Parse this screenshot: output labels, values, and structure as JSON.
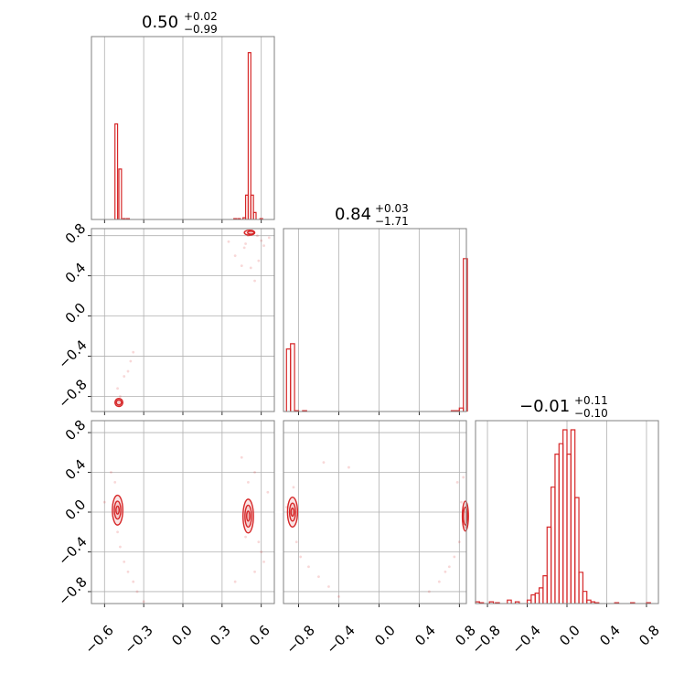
{
  "colors": {
    "series": "#d62728",
    "grid": "#b0b0b0",
    "frame": "#808080",
    "background": "#ffffff"
  },
  "panels": {
    "p0": {
      "title": {
        "value": "0.50",
        "plus": "+0.02",
        "minus": "−0.99"
      }
    },
    "p1": {
      "title": {
        "value": "0.84",
        "plus": "+0.03",
        "minus": "−1.71"
      }
    },
    "p2": {
      "title": {
        "value": "−0.01",
        "plus": "+0.11",
        "minus": "−0.10"
      }
    }
  },
  "ticks": {
    "param0_x": [
      "−0.6",
      "−0.3",
      "0.0",
      "0.3",
      "0.6"
    ],
    "param1_x": [
      "−0.8",
      "−0.4",
      "0.0",
      "0.4",
      "0.8"
    ],
    "param2_x": [
      "−0.8",
      "−0.4",
      "0.0",
      "0.4",
      "0.8"
    ],
    "param1_y": [
      "0.8",
      "0.4",
      "0.0",
      "−0.4",
      "−0.8"
    ],
    "param2_y": [
      "0.8",
      "0.4",
      "0.0",
      "−0.4",
      "−0.8"
    ]
  },
  "chart_data": [
    {
      "type": "histogram",
      "panel": "p0",
      "xlim": [
        -0.7,
        0.7
      ],
      "bins": [
        {
          "x": -0.51,
          "y": 0.55
        },
        {
          "x": -0.48,
          "y": 0.29
        },
        {
          "x": -0.45,
          "y": 0.005
        },
        {
          "x": -0.42,
          "y": 0.005
        },
        {
          "x": 0.4,
          "y": 0.005
        },
        {
          "x": 0.43,
          "y": 0.005
        },
        {
          "x": 0.47,
          "y": 0.01
        },
        {
          "x": 0.49,
          "y": 0.14
        },
        {
          "x": 0.51,
          "y": 0.96
        },
        {
          "x": 0.53,
          "y": 0.14
        },
        {
          "x": 0.55,
          "y": 0.04
        },
        {
          "x": 0.6,
          "y": 0.005
        }
      ]
    },
    {
      "type": "histogram",
      "panel": "p1",
      "xlim": [
        -0.95,
        0.87
      ],
      "bins": [
        {
          "x": -0.9,
          "y": 0.36
        },
        {
          "x": -0.86,
          "y": 0.39
        },
        {
          "x": -0.82,
          "y": 0.005
        },
        {
          "x": -0.74,
          "y": 0.005
        },
        {
          "x": 0.74,
          "y": 0.005
        },
        {
          "x": 0.78,
          "y": 0.005
        },
        {
          "x": 0.82,
          "y": 0.02
        },
        {
          "x": 0.86,
          "y": 0.88
        }
      ]
    },
    {
      "type": "histogram",
      "panel": "p2",
      "xlim": [
        -0.92,
        0.92
      ],
      "bins": [
        {
          "x": -0.9,
          "y": 0.01
        },
        {
          "x": -0.86,
          "y": 0.005
        },
        {
          "x": -0.76,
          "y": 0.01
        },
        {
          "x": -0.7,
          "y": 0.005
        },
        {
          "x": -0.58,
          "y": 0.02
        },
        {
          "x": -0.5,
          "y": 0.01
        },
        {
          "x": -0.38,
          "y": 0.02
        },
        {
          "x": -0.34,
          "y": 0.05
        },
        {
          "x": -0.3,
          "y": 0.06
        },
        {
          "x": -0.26,
          "y": 0.09
        },
        {
          "x": -0.22,
          "y": 0.16
        },
        {
          "x": -0.18,
          "y": 0.44
        },
        {
          "x": -0.14,
          "y": 0.67
        },
        {
          "x": -0.1,
          "y": 0.86
        },
        {
          "x": -0.06,
          "y": 0.92
        },
        {
          "x": -0.02,
          "y": 1.0
        },
        {
          "x": 0.02,
          "y": 0.86
        },
        {
          "x": 0.06,
          "y": 1.0
        },
        {
          "x": 0.1,
          "y": 0.61
        },
        {
          "x": 0.14,
          "y": 0.18
        },
        {
          "x": 0.18,
          "y": 0.07
        },
        {
          "x": 0.22,
          "y": 0.02
        },
        {
          "x": 0.26,
          "y": 0.01
        },
        {
          "x": 0.3,
          "y": 0.005
        },
        {
          "x": 0.5,
          "y": 0.005
        },
        {
          "x": 0.66,
          "y": 0.005
        },
        {
          "x": 0.82,
          "y": 0.005
        }
      ]
    },
    {
      "type": "scatter",
      "panel": "p10",
      "xlim": [
        -0.7,
        0.7
      ],
      "ylim": [
        -0.95,
        0.87
      ],
      "points": [
        [
          -0.48,
          -0.8
        ],
        [
          -0.45,
          -0.6
        ],
        [
          -0.42,
          -0.55
        ],
        [
          -0.4,
          -0.45
        ],
        [
          -0.38,
          -0.36
        ],
        [
          -0.5,
          -0.72
        ],
        [
          0.4,
          0.6
        ],
        [
          0.45,
          0.5
        ],
        [
          0.47,
          0.68
        ],
        [
          0.52,
          0.48
        ],
        [
          0.55,
          0.35
        ],
        [
          0.58,
          0.55
        ],
        [
          0.5,
          0.8
        ],
        [
          0.53,
          0.85
        ],
        [
          0.57,
          0.8
        ],
        [
          0.6,
          0.75
        ],
        [
          0.62,
          0.7
        ],
        [
          0.48,
          0.72
        ],
        [
          0.66,
          0.78
        ],
        [
          0.35,
          0.74
        ]
      ],
      "contours": [
        [
          -0.49,
          -0.86,
          0.03,
          0.04
        ],
        [
          -0.49,
          -0.86,
          0.02,
          0.025
        ],
        [
          0.51,
          0.83,
          0.04,
          0.025
        ],
        [
          0.52,
          0.83,
          0.025,
          0.015
        ]
      ]
    },
    {
      "type": "scatter",
      "panel": "p20",
      "xlim": [
        -0.7,
        0.7
      ],
      "ylim": [
        -0.92,
        0.92
      ],
      "points": [
        [
          -0.52,
          0.3
        ],
        [
          -0.5,
          -0.2
        ],
        [
          -0.48,
          -0.35
        ],
        [
          -0.45,
          -0.5
        ],
        [
          -0.42,
          -0.6
        ],
        [
          -0.38,
          -0.7
        ],
        [
          -0.35,
          -0.8
        ],
        [
          -0.3,
          -0.9
        ],
        [
          -0.55,
          0.4
        ],
        [
          -0.6,
          0.1
        ],
        [
          0.5,
          0.3
        ],
        [
          0.55,
          0.4
        ],
        [
          0.58,
          -0.3
        ],
        [
          0.6,
          -0.4
        ],
        [
          0.62,
          -0.5
        ],
        [
          0.55,
          -0.6
        ],
        [
          0.48,
          -0.25
        ],
        [
          0.65,
          0.2
        ],
        [
          0.4,
          -0.7
        ],
        [
          0.45,
          0.55
        ]
      ],
      "contours": [
        [
          -0.5,
          0.02,
          0.04,
          0.15
        ],
        [
          -0.5,
          0.02,
          0.025,
          0.09
        ],
        [
          -0.5,
          0.02,
          0.012,
          0.04
        ],
        [
          0.5,
          -0.04,
          0.04,
          0.17
        ],
        [
          0.5,
          -0.04,
          0.025,
          0.11
        ],
        [
          0.5,
          -0.04,
          0.012,
          0.05
        ]
      ]
    },
    {
      "type": "scatter",
      "panel": "p21",
      "xlim": [
        -0.95,
        0.87
      ],
      "ylim": [
        -0.92,
        0.92
      ],
      "points": [
        [
          -0.85,
          0.25
        ],
        [
          -0.82,
          -0.3
        ],
        [
          -0.78,
          -0.45
        ],
        [
          -0.7,
          -0.55
        ],
        [
          -0.6,
          -0.65
        ],
        [
          -0.5,
          -0.75
        ],
        [
          -0.4,
          -0.85
        ],
        [
          -0.92,
          0.05
        ],
        [
          -0.55,
          0.5
        ],
        [
          -0.3,
          0.45
        ],
        [
          0.84,
          0.35
        ],
        [
          0.8,
          -0.3
        ],
        [
          0.75,
          -0.45
        ],
        [
          0.7,
          -0.55
        ],
        [
          0.6,
          -0.7
        ],
        [
          0.5,
          -0.8
        ],
        [
          0.82,
          0.1
        ],
        [
          0.85,
          -0.15
        ],
        [
          0.66,
          -0.6
        ],
        [
          0.78,
          0.3
        ]
      ],
      "contours": [
        [
          -0.86,
          0.0,
          0.05,
          0.15
        ],
        [
          -0.86,
          0.0,
          0.03,
          0.09
        ],
        [
          -0.86,
          0.0,
          0.015,
          0.04
        ],
        [
          0.86,
          -0.04,
          0.03,
          0.15
        ],
        [
          0.86,
          -0.04,
          0.02,
          0.09
        ]
      ]
    }
  ]
}
